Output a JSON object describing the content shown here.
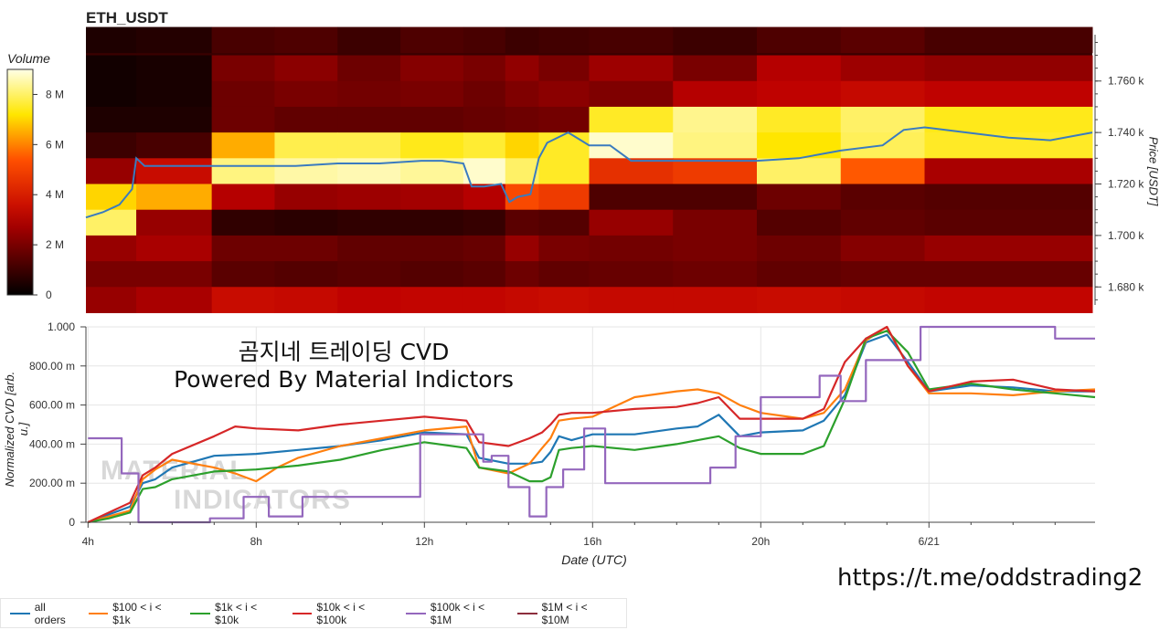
{
  "chart_data": [
    {
      "type": "heatmap",
      "title": "ETH_USDT",
      "colorbar": {
        "title": "Volume",
        "ticks": [
          "0",
          "2 M",
          "4 M",
          "6 M",
          "8 M"
        ],
        "range": [
          0,
          9
        ]
      },
      "ylabel": "Price [USDT]",
      "y_ticks": [
        "1.680 k",
        "1.700 k",
        "1.720 k",
        "1.740 k",
        "1.760 k"
      ],
      "y_tick_values": [
        1680,
        1700,
        1720,
        1740,
        1760
      ],
      "ylim": [
        1673,
        1778
      ],
      "xlim": [
        4.0,
        28.0
      ],
      "price_line": {
        "name": "price",
        "color": "#3a7bbf",
        "x": [
          4.0,
          4.4,
          4.8,
          5.1,
          5.2,
          5.4,
          6,
          7,
          8,
          9,
          10,
          11,
          12,
          12.5,
          13,
          13.2,
          13.5,
          13.9,
          14.1,
          14.3,
          14.6,
          14.8,
          15,
          15.5,
          16,
          16.5,
          17,
          18,
          19,
          20,
          21,
          22,
          23,
          23.5,
          24,
          25,
          26,
          27,
          28
        ],
        "y": [
          1707,
          1709,
          1712,
          1718,
          1730,
          1727,
          1727,
          1727,
          1727,
          1727,
          1728,
          1728,
          1729,
          1729,
          1728,
          1719,
          1719,
          1720,
          1713,
          1715,
          1716,
          1730,
          1736,
          1740,
          1735,
          1735,
          1729,
          1729,
          1729,
          1729,
          1730,
          1733,
          1735,
          1741,
          1742,
          1740,
          1738,
          1737,
          1740
        ]
      },
      "bands": [
        {
          "price": 1776,
          "values": [
            0.5,
            0.6,
            1.2,
            1.3,
            1.0,
            1.3,
            1.2,
            1.0,
            1.1,
            1.2,
            1.0,
            1.3,
            1.5,
            1.2
          ]
        },
        {
          "price": 1765,
          "values": [
            0.3,
            0.4,
            2.0,
            2.3,
            1.8,
            2.2,
            2.0,
            2.4,
            2.0,
            2.6,
            2.0,
            3.0,
            2.6,
            2.4
          ]
        },
        {
          "price": 1755,
          "values": [
            0.3,
            0.4,
            1.8,
            2.0,
            1.9,
            2.0,
            1.8,
            2.1,
            2.3,
            2.1,
            3.0,
            3.2,
            3.4,
            3.2
          ]
        },
        {
          "price": 1745,
          "values": [
            0.5,
            0.5,
            1.8,
            1.6,
            1.6,
            1.6,
            1.7,
            1.8,
            1.9,
            7.5,
            8.3,
            7.5,
            8.0,
            7.4
          ]
        },
        {
          "price": 1735,
          "values": [
            1.0,
            1.2,
            6.5,
            7.8,
            7.8,
            7.4,
            7.6,
            7.0,
            7.5,
            8.8,
            8.2,
            7.2,
            7.9,
            7.5
          ]
        },
        {
          "price": 1725,
          "values": [
            2.5,
            3.5,
            8.2,
            8.5,
            8.6,
            8.4,
            8.8,
            8.0,
            7.5,
            4.5,
            4.8,
            8.0,
            5.5,
            2.8
          ]
        },
        {
          "price": 1715,
          "values": [
            7.0,
            6.5,
            3.0,
            2.5,
            2.6,
            2.7,
            3.0,
            5.2,
            4.8,
            1.3,
            1.3,
            1.8,
            1.5,
            1.4
          ]
        },
        {
          "price": 1705,
          "values": [
            8.0,
            2.5,
            0.8,
            0.7,
            0.8,
            0.8,
            0.9,
            1.5,
            1.4,
            2.5,
            2.0,
            1.4,
            1.6,
            1.5
          ]
        },
        {
          "price": 1695,
          "values": [
            2.5,
            2.8,
            1.8,
            1.8,
            1.6,
            1.6,
            1.7,
            2.5,
            2.0,
            1.9,
            2.0,
            1.8,
            2.2,
            2.5
          ]
        },
        {
          "price": 1685,
          "values": [
            2.0,
            2.0,
            1.5,
            1.4,
            1.5,
            1.4,
            1.5,
            1.8,
            1.6,
            1.7,
            1.8,
            1.6,
            1.7,
            1.7
          ]
        },
        {
          "price": 1675,
          "values": [
            2.5,
            2.8,
            3.5,
            3.4,
            3.2,
            3.3,
            3.3,
            3.4,
            3.5,
            3.4,
            3.4,
            3.5,
            3.4,
            3.3
          ]
        }
      ],
      "band_x": [
        4.0,
        5.2,
        7,
        8.5,
        10,
        11.5,
        13,
        14,
        14.8,
        16,
        18,
        20,
        22,
        24,
        28
      ]
    },
    {
      "type": "line",
      "title": "곰지네 트레이딩 CVD",
      "subtitle": "Powered By Material Indictors",
      "xlabel": "Date (UTC)",
      "ylabel": "Normalized CVD [arb. u.]",
      "ylim": [
        0,
        1.0
      ],
      "xlim": [
        3.95,
        27.95
      ],
      "y_ticks": [
        "0",
        "200.00 m",
        "400.00 m",
        "600.00 m",
        "800.00 m",
        "1.000"
      ],
      "y_tick_values": [
        0,
        0.2,
        0.4,
        0.6,
        0.8,
        1.0
      ],
      "x_ticks": [
        "4h",
        "8h",
        "12h",
        "16h",
        "20h",
        "6/21"
      ],
      "x_tick_values": [
        4,
        8,
        12,
        16,
        20,
        24
      ],
      "grid": true,
      "series": [
        {
          "name": "all orders",
          "color": "#1f77b4",
          "x": [
            4.0,
            4.5,
            5.0,
            5.3,
            5.6,
            6.0,
            7.0,
            8.0,
            9.0,
            10.0,
            11.0,
            12.0,
            13.0,
            13.3,
            14.0,
            14.5,
            14.8,
            15.0,
            15.2,
            15.5,
            16.0,
            17.0,
            18.0,
            18.5,
            19.0,
            19.5,
            20.0,
            21.0,
            21.5,
            22.0,
            22.5,
            23.0,
            23.5,
            24.0,
            25.0,
            26.0,
            27.0,
            27.95
          ],
          "y": [
            0.0,
            0.04,
            0.08,
            0.2,
            0.22,
            0.28,
            0.34,
            0.35,
            0.37,
            0.39,
            0.42,
            0.46,
            0.45,
            0.33,
            0.3,
            0.3,
            0.31,
            0.36,
            0.44,
            0.42,
            0.45,
            0.45,
            0.48,
            0.49,
            0.55,
            0.44,
            0.46,
            0.47,
            0.52,
            0.65,
            0.92,
            0.96,
            0.82,
            0.67,
            0.7,
            0.69,
            0.67,
            0.67
          ]
        },
        {
          "name": "$100 < i < $1k",
          "color": "#ff7f0e",
          "x": [
            4.0,
            4.5,
            5.0,
            5.3,
            5.6,
            6.0,
            7.0,
            7.5,
            8.0,
            8.5,
            9.0,
            10.0,
            11.0,
            12.0,
            13.0,
            13.3,
            14.0,
            14.5,
            14.8,
            15.0,
            15.2,
            15.5,
            16.0,
            17.0,
            18.0,
            18.5,
            19.0,
            19.5,
            20.0,
            21.0,
            21.5,
            22.0,
            22.5,
            23.0,
            23.5,
            24.0,
            25.0,
            26.0,
            27.0,
            27.95
          ],
          "y": [
            0.0,
            0.03,
            0.06,
            0.22,
            0.27,
            0.32,
            0.28,
            0.25,
            0.21,
            0.28,
            0.33,
            0.39,
            0.43,
            0.47,
            0.49,
            0.28,
            0.25,
            0.3,
            0.38,
            0.43,
            0.52,
            0.53,
            0.54,
            0.64,
            0.67,
            0.68,
            0.66,
            0.6,
            0.56,
            0.53,
            0.56,
            0.68,
            0.93,
            1.0,
            0.8,
            0.66,
            0.66,
            0.65,
            0.67,
            0.68
          ]
        },
        {
          "name": "$1k < i < $10k",
          "color": "#2ca02c",
          "x": [
            4.0,
            4.5,
            5.0,
            5.3,
            5.6,
            6.0,
            7.0,
            8.0,
            9.0,
            10.0,
            11.0,
            12.0,
            13.0,
            13.3,
            14.0,
            14.5,
            14.8,
            15.0,
            15.2,
            15.5,
            16.0,
            17.0,
            18.0,
            18.5,
            19.0,
            19.5,
            20.0,
            21.0,
            21.5,
            22.0,
            22.5,
            23.0,
            23.5,
            24.0,
            25.0,
            26.0,
            27.0,
            27.95
          ],
          "y": [
            0.0,
            0.02,
            0.05,
            0.17,
            0.18,
            0.22,
            0.26,
            0.27,
            0.29,
            0.32,
            0.37,
            0.41,
            0.38,
            0.28,
            0.26,
            0.21,
            0.21,
            0.23,
            0.37,
            0.38,
            0.39,
            0.37,
            0.4,
            0.42,
            0.44,
            0.38,
            0.35,
            0.35,
            0.39,
            0.63,
            0.94,
            0.98,
            0.87,
            0.68,
            0.71,
            0.68,
            0.66,
            0.64
          ]
        },
        {
          "name": "$10k < i < $100k",
          "color": "#d62728",
          "x": [
            4.0,
            4.5,
            5.0,
            5.3,
            5.6,
            6.0,
            7.0,
            7.5,
            8.0,
            9.0,
            10.0,
            11.0,
            12.0,
            13.0,
            13.3,
            14.0,
            14.5,
            14.8,
            15.0,
            15.2,
            15.5,
            16.0,
            17.0,
            18.0,
            18.5,
            19.0,
            19.5,
            20.0,
            21.0,
            21.5,
            22.0,
            22.5,
            23.0,
            23.5,
            24.0,
            25.0,
            26.0,
            27.0,
            27.95
          ],
          "y": [
            0.0,
            0.05,
            0.1,
            0.24,
            0.28,
            0.35,
            0.44,
            0.49,
            0.48,
            0.47,
            0.5,
            0.52,
            0.54,
            0.52,
            0.41,
            0.39,
            0.43,
            0.46,
            0.5,
            0.55,
            0.56,
            0.56,
            0.58,
            0.59,
            0.61,
            0.64,
            0.53,
            0.53,
            0.53,
            0.58,
            0.82,
            0.94,
            1.0,
            0.8,
            0.67,
            0.72,
            0.73,
            0.68,
            0.67
          ]
        },
        {
          "name": "$100k < i < $1M",
          "color": "#9467bd",
          "x": [
            4.0,
            4.8,
            4.8,
            5.2,
            5.2,
            5.6,
            5.6,
            6.9,
            6.9,
            7.7,
            7.7,
            8.3,
            8.3,
            9.1,
            9.1,
            11.9,
            11.9,
            13.4,
            13.4,
            13.6,
            13.6,
            14.0,
            14.0,
            14.5,
            14.5,
            14.9,
            14.9,
            15.3,
            15.3,
            15.8,
            15.8,
            16.3,
            16.3,
            18.8,
            18.8,
            19.4,
            19.4,
            20.0,
            20.0,
            21.4,
            21.4,
            21.9,
            21.9,
            22.5,
            22.5,
            23.2,
            23.2,
            23.8,
            23.8,
            27.0,
            27.0,
            27.95
          ],
          "y": [
            0.43,
            0.43,
            0.25,
            0.25,
            0.0,
            0.0,
            0.0,
            0.0,
            0.02,
            0.02,
            0.13,
            0.13,
            0.03,
            0.03,
            0.13,
            0.13,
            0.45,
            0.45,
            0.31,
            0.31,
            0.34,
            0.34,
            0.18,
            0.18,
            0.03,
            0.03,
            0.18,
            0.18,
            0.27,
            0.27,
            0.48,
            0.48,
            0.2,
            0.2,
            0.28,
            0.28,
            0.44,
            0.44,
            0.64,
            0.64,
            0.75,
            0.75,
            0.62,
            0.62,
            0.83,
            0.83,
            0.83,
            0.83,
            1.0,
            1.0,
            0.94,
            0.94
          ]
        }
      ],
      "legend_entries": [
        {
          "name": "all orders",
          "color": "#1f77b4"
        },
        {
          "name": "$100 < i < $1k",
          "color": "#ff7f0e"
        },
        {
          "name": "$1k < i < $10k",
          "color": "#2ca02c"
        },
        {
          "name": "$10k < i < $100k",
          "color": "#d62728"
        },
        {
          "name": "$100k < i < $1M",
          "color": "#9467bd"
        },
        {
          "name": "$1M < i < $10M",
          "color": "#8c2d3c"
        }
      ]
    }
  ],
  "watermark": {
    "line1": "MATERIAL",
    "line2": "INDICATORS"
  },
  "telegram_link": "https://t.me/oddstrading2"
}
